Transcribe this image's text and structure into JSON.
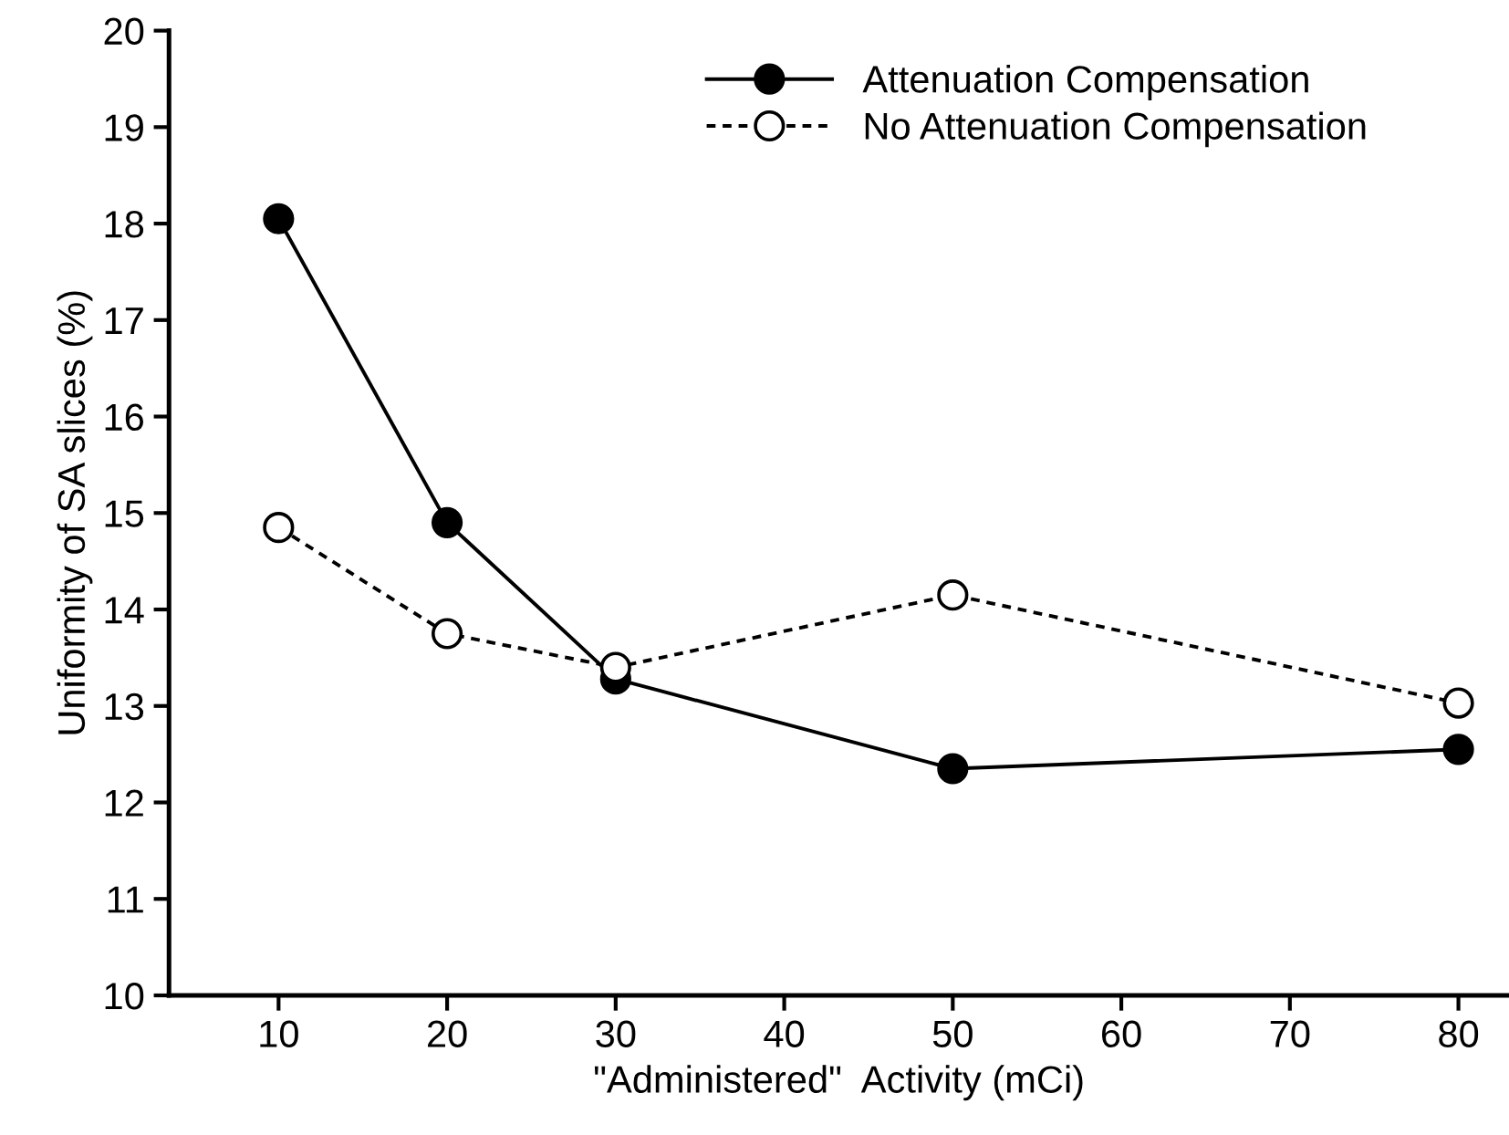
{
  "chart_data": {
    "type": "line",
    "xlabel": "\"Administered\"  Activity (mCi)",
    "ylabel": "Uniformity of SA slices (%)",
    "x": [
      10,
      20,
      30,
      50,
      80
    ],
    "series": [
      {
        "name": "Attenuation Compensation",
        "color": "#000000",
        "values": [
          18.05,
          14.9,
          13.28,
          12.35,
          12.55
        ],
        "marker": "circle",
        "line_style": "solid"
      },
      {
        "name": "No Attenuation Compensation",
        "color": "#000000",
        "values": [
          14.85,
          13.75,
          13.4,
          14.15,
          13.03
        ],
        "marker": "circle",
        "line_style": "dotted"
      }
    ],
    "xlim": [
      3.5,
      83
    ],
    "xticks": [
      10,
      20,
      30,
      40,
      50,
      60,
      70,
      80
    ],
    "ylim": [
      10,
      20
    ],
    "yticks": [
      10,
      11,
      12,
      13,
      14,
      15,
      16,
      17,
      18,
      19,
      20
    ],
    "grid": false,
    "legend": "top right"
  }
}
